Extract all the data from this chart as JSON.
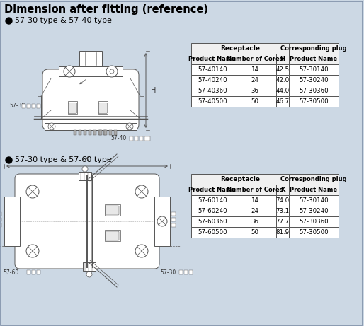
{
  "title": "Dimension after fitting (reference)",
  "section1_label": "57-30 type & 57-40 type",
  "section2_label": "57-30 type & 57-60 type",
  "bg_color": "#ccd8e4",
  "table1": {
    "receptacle_header": "Receptacle",
    "plug_header": "Corresponding plug",
    "col_headers": [
      "Product Name",
      "Number of Cores",
      "H",
      "Product Name"
    ],
    "rows": [
      [
        "57-40140",
        "14",
        "42.5",
        "57-30140"
      ],
      [
        "57-40240",
        "24",
        "42.0",
        "57-30240"
      ],
      [
        "57-40360",
        "36",
        "44.0",
        "57-30360"
      ],
      [
        "57-40500",
        "50",
        "46.7",
        "57-30500"
      ]
    ]
  },
  "table2": {
    "receptacle_header": "Receptacle",
    "plug_header": "Corresponding plug",
    "col_headers": [
      "Product Name",
      "Number of Cores",
      "K",
      "Product Name"
    ],
    "rows": [
      [
        "57-60140",
        "14",
        "74.0",
        "57-30140"
      ],
      [
        "57-60240",
        "24",
        "73.1",
        "57-30240"
      ],
      [
        "57-60360",
        "36",
        "77.7",
        "57-30360"
      ],
      [
        "57-60500",
        "50",
        "81.9",
        "57-30500"
      ]
    ]
  }
}
